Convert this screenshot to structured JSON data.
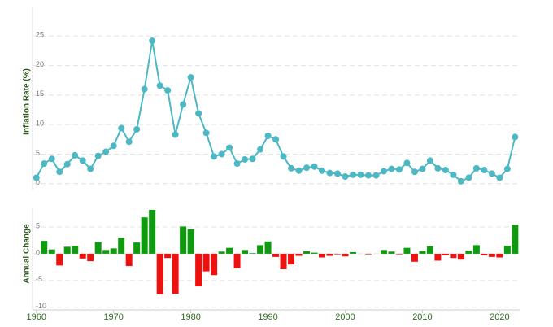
{
  "chart_data": [
    {
      "type": "line",
      "y_label": "Inflation Rate (%)",
      "x": [
        1960,
        1961,
        1962,
        1963,
        1964,
        1965,
        1966,
        1967,
        1968,
        1969,
        1970,
        1971,
        1972,
        1973,
        1974,
        1975,
        1976,
        1977,
        1978,
        1979,
        1980,
        1981,
        1982,
        1983,
        1984,
        1985,
        1986,
        1987,
        1988,
        1989,
        1990,
        1991,
        1992,
        1993,
        1994,
        1995,
        1996,
        1997,
        1998,
        1999,
        2000,
        2001,
        2002,
        2003,
        2004,
        2005,
        2006,
        2007,
        2008,
        2009,
        2010,
        2011,
        2012,
        2013,
        2014,
        2015,
        2016,
        2017,
        2018,
        2019,
        2020,
        2021,
        2022
      ],
      "values": [
        1.0,
        3.4,
        4.2,
        2.0,
        3.3,
        4.8,
        3.9,
        2.5,
        4.7,
        5.4,
        6.4,
        9.4,
        7.1,
        9.2,
        16.0,
        24.2,
        16.6,
        15.8,
        8.3,
        13.4,
        18.0,
        11.9,
        8.6,
        4.6,
        5.0,
        6.1,
        3.4,
        4.1,
        4.2,
        5.8,
        8.1,
        7.5,
        4.6,
        2.6,
        2.2,
        2.7,
        2.9,
        2.2,
        1.8,
        1.7,
        1.2,
        1.5,
        1.5,
        1.4,
        1.4,
        2.1,
        2.5,
        2.4,
        3.5,
        2.0,
        2.5,
        3.9,
        2.6,
        2.3,
        1.5,
        0.4,
        1.0,
        2.6,
        2.3,
        1.7,
        1.0,
        2.5,
        7.9
      ],
      "color": "#4cb8c4",
      "xlim": [
        1959.5,
        2022.7
      ],
      "ylim": [
        -1,
        30
      ],
      "yticks": [
        0,
        5,
        10,
        15,
        20,
        25
      ],
      "grid": true
    },
    {
      "type": "bar",
      "y_label": "Annual Change",
      "x": [
        1961,
        1962,
        1963,
        1964,
        1965,
        1966,
        1967,
        1968,
        1969,
        1970,
        1971,
        1972,
        1973,
        1974,
        1975,
        1976,
        1977,
        1978,
        1979,
        1980,
        1981,
        1982,
        1983,
        1984,
        1985,
        1986,
        1987,
        1988,
        1989,
        1990,
        1991,
        1992,
        1993,
        1994,
        1995,
        1996,
        1997,
        1998,
        1999,
        2000,
        2001,
        2002,
        2003,
        2004,
        2005,
        2006,
        2007,
        2008,
        2009,
        2010,
        2011,
        2012,
        2013,
        2014,
        2015,
        2016,
        2017,
        2018,
        2019,
        2020,
        2021,
        2022
      ],
      "values": [
        2.4,
        0.8,
        -2.2,
        1.3,
        1.5,
        -0.9,
        -1.4,
        2.2,
        0.7,
        1.0,
        3.0,
        -2.3,
        2.1,
        6.8,
        8.2,
        -7.6,
        -0.8,
        -7.5,
        5.1,
        4.6,
        -6.1,
        -3.3,
        -4.0,
        0.4,
        1.1,
        -2.7,
        0.7,
        0.1,
        1.6,
        2.3,
        -0.6,
        -2.9,
        -2.0,
        -0.4,
        0.5,
        0.2,
        -0.7,
        -0.4,
        -0.1,
        -0.5,
        0.3,
        0.0,
        -0.1,
        0.0,
        0.7,
        0.4,
        -0.1,
        1.1,
        -1.5,
        0.5,
        1.4,
        -1.3,
        -0.3,
        -0.8,
        -1.1,
        0.6,
        1.6,
        -0.3,
        -0.6,
        -0.7,
        1.5,
        5.4
      ],
      "positive_color": "#0f9a0f",
      "negative_color": "#ee1111",
      "xlim": [
        1959.5,
        2022.7
      ],
      "xticks": [
        1960,
        1970,
        1980,
        1990,
        2000,
        2010,
        2020
      ],
      "ylim": [
        -10.5,
        8.5
      ],
      "yticks": [
        -10,
        -5,
        0,
        5
      ],
      "grid": true
    }
  ]
}
